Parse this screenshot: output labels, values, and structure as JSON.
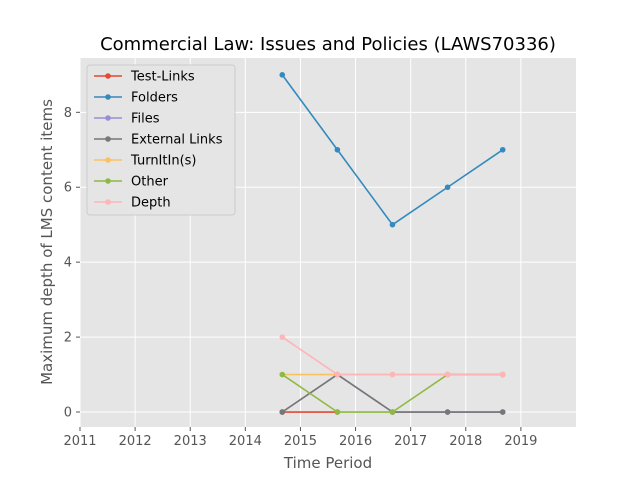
{
  "chart_data": {
    "type": "line",
    "title": "Commercial Law: Issues and Policies (LAWS70336)",
    "xlabel": "Time Period",
    "ylabel": "Maximum depth of LMS content items",
    "xlim": [
      2011,
      2020
    ],
    "ylim": [
      -0.4,
      9.45
    ],
    "x_ticks": [
      2011,
      2012,
      2013,
      2014,
      2015,
      2016,
      2017,
      2018,
      2019
    ],
    "y_ticks": [
      0,
      2,
      4,
      6,
      8
    ],
    "grid": true,
    "legend_position": "top-left",
    "series": [
      {
        "name": "Test-Links",
        "color": "#E24A33",
        "x": [
          2014.67,
          2015.67
        ],
        "y": [
          0,
          0
        ]
      },
      {
        "name": "Folders",
        "color": "#348ABD",
        "x": [
          2014.67,
          2015.67,
          2016.67,
          2017.67,
          2018.67
        ],
        "y": [
          9,
          7,
          5,
          6,
          7
        ]
      },
      {
        "name": "Files",
        "color": "#988ED5",
        "x": [
          2014.67,
          2015.67,
          2016.67,
          2017.67,
          2018.67
        ],
        "y": [
          0,
          1,
          0,
          0,
          0
        ]
      },
      {
        "name": "External Links",
        "color": "#777777",
        "x": [
          2014.67,
          2015.67,
          2016.67,
          2017.67,
          2018.67
        ],
        "y": [
          0,
          1,
          0,
          0,
          0
        ]
      },
      {
        "name": "TurnItIn(s)",
        "color": "#FBC15E",
        "x": [
          2014.67,
          2015.67,
          2016.67,
          2017.67,
          2018.67
        ],
        "y": [
          1,
          1,
          1,
          1,
          1
        ]
      },
      {
        "name": "Other",
        "color": "#8EBA42",
        "x": [
          2014.67,
          2015.67,
          2016.67,
          2017.67,
          2018.67
        ],
        "y": [
          1,
          0,
          0,
          1,
          1
        ]
      },
      {
        "name": "Depth",
        "color": "#FFB5B8",
        "x": [
          2014.67,
          2015.67,
          2016.67,
          2017.67,
          2018.67
        ],
        "y": [
          2,
          1,
          1,
          1,
          1
        ]
      }
    ]
  }
}
